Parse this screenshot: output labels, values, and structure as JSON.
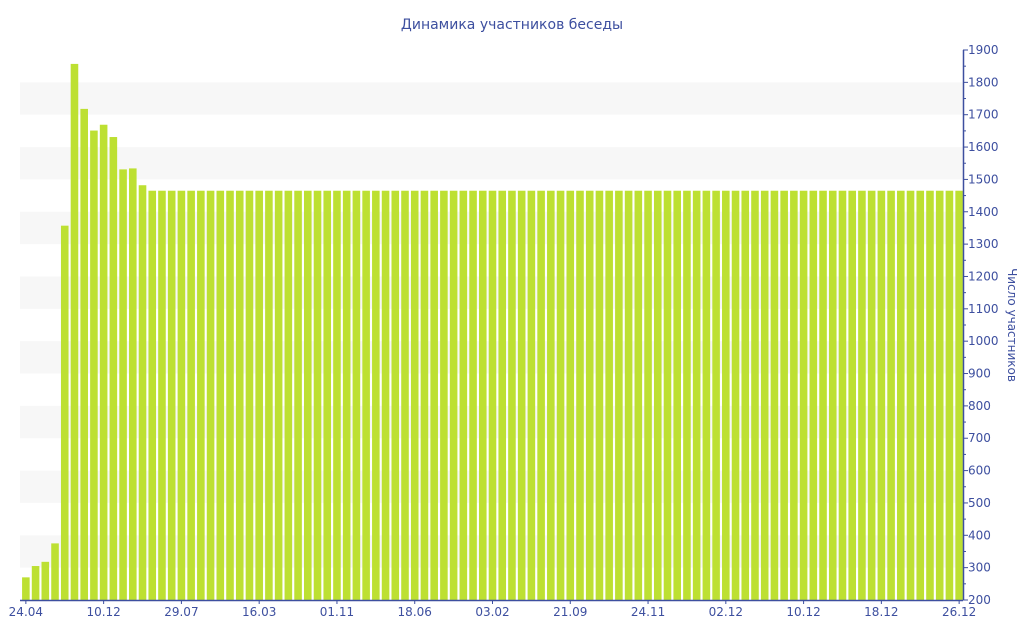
{
  "chart_data": {
    "type": "bar",
    "title": "Динамика участников беседы",
    "xlabel": "",
    "ylabel": "Число участников",
    "ylim": [
      200,
      1900
    ],
    "y_ticks": [
      200,
      300,
      400,
      500,
      600,
      700,
      800,
      900,
      1000,
      1100,
      1200,
      1300,
      1400,
      1500,
      1600,
      1700,
      1800,
      1900
    ],
    "y_axis_side": "right",
    "grid": "alternating horizontal bands",
    "x_tick_labels": [
      {
        "index": 0,
        "label": "24.04"
      },
      {
        "index": 8,
        "label": "10.12"
      },
      {
        "index": 16,
        "label": "29.07"
      },
      {
        "index": 24,
        "label": "16.03"
      },
      {
        "index": 32,
        "label": "01.11"
      },
      {
        "index": 40,
        "label": "18.06"
      },
      {
        "index": 48,
        "label": "03.02"
      },
      {
        "index": 56,
        "label": "21.09"
      },
      {
        "index": 64,
        "label": "24.11"
      },
      {
        "index": 72,
        "label": "02.12"
      },
      {
        "index": 80,
        "label": "10.12"
      },
      {
        "index": 88,
        "label": "18.12"
      },
      {
        "index": 96,
        "label": "26.12"
      }
    ],
    "values": [
      270,
      305,
      318,
      375,
      1357,
      1857,
      1718,
      1651,
      1669,
      1631,
      1531,
      1534,
      1482,
      1465,
      1465,
      1465,
      1465,
      1465,
      1465,
      1465,
      1465,
      1465,
      1465,
      1465,
      1465,
      1465,
      1465,
      1465,
      1465,
      1465,
      1465,
      1465,
      1465,
      1465,
      1465,
      1465,
      1465,
      1465,
      1465,
      1465,
      1465,
      1465,
      1465,
      1465,
      1465,
      1465,
      1465,
      1465,
      1465,
      1465,
      1465,
      1465,
      1465,
      1465,
      1465,
      1465,
      1465,
      1465,
      1465,
      1465,
      1465,
      1465,
      1465,
      1465,
      1465,
      1465,
      1465,
      1465,
      1465,
      1465,
      1465,
      1465,
      1465,
      1465,
      1465,
      1465,
      1465,
      1465,
      1465,
      1465,
      1465,
      1465,
      1465,
      1465,
      1465,
      1465,
      1465,
      1465,
      1465,
      1465,
      1465,
      1465,
      1465,
      1465,
      1465,
      1465,
      1465
    ],
    "colors": {
      "bar": "#bde032",
      "text": "#3d4f9f",
      "band": "#f7f7f7",
      "axis": "#3d4f9f"
    }
  }
}
